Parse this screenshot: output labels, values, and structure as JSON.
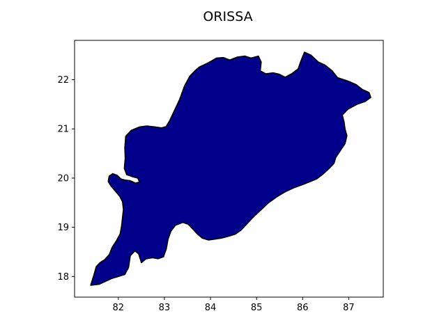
{
  "title": "ORISSA",
  "map": {
    "region_name": "ORISSA",
    "fill_color": "#00008b",
    "edge_color": "#000000",
    "background_color": "#ffffff",
    "x_range": [
      81.05,
      87.75
    ],
    "y_range": [
      17.58,
      22.8
    ],
    "x_ticks": [
      82,
      83,
      84,
      85,
      86,
      87
    ],
    "x_tick_labels": [
      "82",
      "83",
      "84",
      "85",
      "86",
      "87"
    ],
    "y_ticks": [
      18,
      19,
      20,
      21,
      22
    ],
    "y_tick_labels": [
      "18",
      "19",
      "20",
      "21",
      "22"
    ],
    "outline": [
      [
        81.4,
        17.82
      ],
      [
        81.46,
        18.0
      ],
      [
        81.52,
        18.2
      ],
      [
        81.6,
        18.28
      ],
      [
        81.7,
        18.34
      ],
      [
        81.8,
        18.44
      ],
      [
        81.87,
        18.6
      ],
      [
        81.96,
        18.73
      ],
      [
        82.04,
        18.87
      ],
      [
        82.07,
        19.02
      ],
      [
        82.09,
        19.2
      ],
      [
        82.11,
        19.36
      ],
      [
        82.09,
        19.52
      ],
      [
        82.03,
        19.63
      ],
      [
        81.95,
        19.72
      ],
      [
        81.84,
        19.84
      ],
      [
        81.78,
        19.93
      ],
      [
        81.8,
        20.04
      ],
      [
        81.88,
        20.09
      ],
      [
        81.97,
        20.06
      ],
      [
        82.06,
        19.98
      ],
      [
        82.15,
        19.96
      ],
      [
        82.25,
        19.95
      ],
      [
        82.37,
        19.9
      ],
      [
        82.46,
        19.92
      ],
      [
        82.42,
        20.0
      ],
      [
        82.3,
        20.03
      ],
      [
        82.18,
        20.07
      ],
      [
        82.13,
        20.2
      ],
      [
        82.15,
        20.4
      ],
      [
        82.14,
        20.62
      ],
      [
        82.16,
        20.85
      ],
      [
        82.28,
        20.97
      ],
      [
        82.46,
        21.04
      ],
      [
        82.62,
        21.06
      ],
      [
        82.8,
        21.04
      ],
      [
        82.94,
        21.02
      ],
      [
        83.04,
        21.05
      ],
      [
        83.12,
        21.18
      ],
      [
        83.22,
        21.38
      ],
      [
        83.33,
        21.6
      ],
      [
        83.44,
        21.88
      ],
      [
        83.55,
        22.07
      ],
      [
        83.65,
        22.17
      ],
      [
        83.76,
        22.26
      ],
      [
        83.92,
        22.33
      ],
      [
        84.02,
        22.38
      ],
      [
        84.13,
        22.44
      ],
      [
        84.28,
        22.45
      ],
      [
        84.42,
        22.4
      ],
      [
        84.58,
        22.46
      ],
      [
        84.75,
        22.48
      ],
      [
        84.88,
        22.44
      ],
      [
        85.04,
        22.48
      ],
      [
        85.1,
        22.36
      ],
      [
        85.08,
        22.18
      ],
      [
        85.2,
        22.12
      ],
      [
        85.36,
        22.14
      ],
      [
        85.5,
        22.11
      ],
      [
        85.62,
        22.05
      ],
      [
        85.76,
        22.12
      ],
      [
        85.9,
        22.22
      ],
      [
        85.97,
        22.4
      ],
      [
        86.04,
        22.56
      ],
      [
        86.18,
        22.5
      ],
      [
        86.34,
        22.36
      ],
      [
        86.48,
        22.3
      ],
      [
        86.64,
        22.18
      ],
      [
        86.76,
        22.04
      ],
      [
        86.9,
        22.0
      ],
      [
        87.02,
        21.96
      ],
      [
        87.16,
        21.9
      ],
      [
        87.3,
        21.8
      ],
      [
        87.44,
        21.74
      ],
      [
        87.48,
        21.64
      ],
      [
        87.36,
        21.56
      ],
      [
        87.18,
        21.5
      ],
      [
        86.98,
        21.4
      ],
      [
        86.86,
        21.28
      ],
      [
        86.9,
        21.14
      ],
      [
        86.92,
        21.0
      ],
      [
        86.96,
        20.86
      ],
      [
        86.92,
        20.7
      ],
      [
        86.82,
        20.56
      ],
      [
        86.72,
        20.42
      ],
      [
        86.68,
        20.3
      ],
      [
        86.58,
        20.2
      ],
      [
        86.44,
        20.08
      ],
      [
        86.3,
        19.98
      ],
      [
        86.14,
        19.92
      ],
      [
        85.98,
        19.86
      ],
      [
        85.8,
        19.8
      ],
      [
        85.62,
        19.72
      ],
      [
        85.44,
        19.62
      ],
      [
        85.26,
        19.5
      ],
      [
        85.08,
        19.34
      ],
      [
        84.92,
        19.2
      ],
      [
        84.78,
        19.06
      ],
      [
        84.66,
        18.94
      ],
      [
        84.54,
        18.86
      ],
      [
        84.4,
        18.82
      ],
      [
        84.24,
        18.78
      ],
      [
        84.1,
        18.76
      ],
      [
        83.96,
        18.74
      ],
      [
        83.82,
        18.78
      ],
      [
        83.72,
        18.86
      ],
      [
        83.62,
        18.96
      ],
      [
        83.52,
        19.06
      ],
      [
        83.4,
        19.1
      ],
      [
        83.24,
        19.04
      ],
      [
        83.14,
        18.92
      ],
      [
        83.08,
        18.76
      ],
      [
        83.04,
        18.56
      ],
      [
        82.98,
        18.4
      ],
      [
        82.86,
        18.36
      ],
      [
        82.74,
        18.38
      ],
      [
        82.6,
        18.36
      ],
      [
        82.5,
        18.28
      ],
      [
        82.44,
        18.46
      ],
      [
        82.36,
        18.52
      ],
      [
        82.26,
        18.42
      ],
      [
        82.22,
        18.18
      ],
      [
        82.14,
        18.04
      ],
      [
        82.0,
        18.0
      ],
      [
        81.86,
        17.96
      ],
      [
        81.72,
        17.9
      ],
      [
        81.58,
        17.84
      ]
    ]
  }
}
